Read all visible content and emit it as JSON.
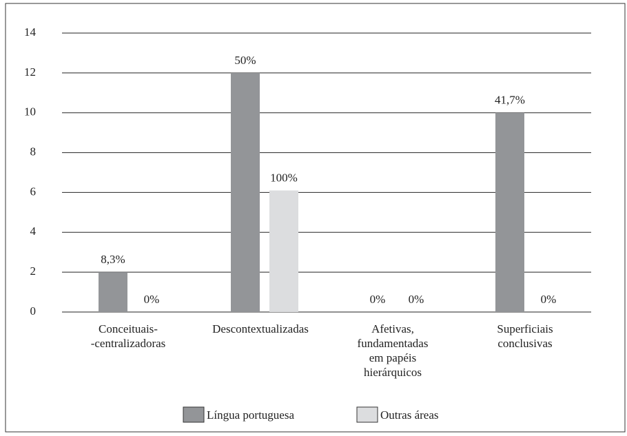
{
  "chart_data": {
    "type": "bar",
    "categories": [
      "Conceituais-\n-centralizadoras",
      "Descontextualizadas",
      "Afetivas,\nfundamentadas\nem papéis\nhierárquicos",
      "Superficiais\nconclusivas"
    ],
    "series": [
      {
        "name": "Língua portuguesa",
        "color": "#939598",
        "values": [
          2,
          12,
          0,
          10
        ],
        "percent_labels": [
          "8,3%",
          "50%",
          "0%",
          "41,7%"
        ]
      },
      {
        "name": "Outras áreas",
        "color": "#dcdddf",
        "values": [
          0,
          6.1,
          0,
          0
        ],
        "percent_labels": [
          "0%",
          "100%",
          "0%",
          "0%"
        ]
      }
    ],
    "ylim": [
      0,
      14
    ],
    "yticks": [
      0,
      2,
      4,
      6,
      8,
      10,
      12,
      14
    ],
    "grid": true,
    "legend": "bottom"
  }
}
